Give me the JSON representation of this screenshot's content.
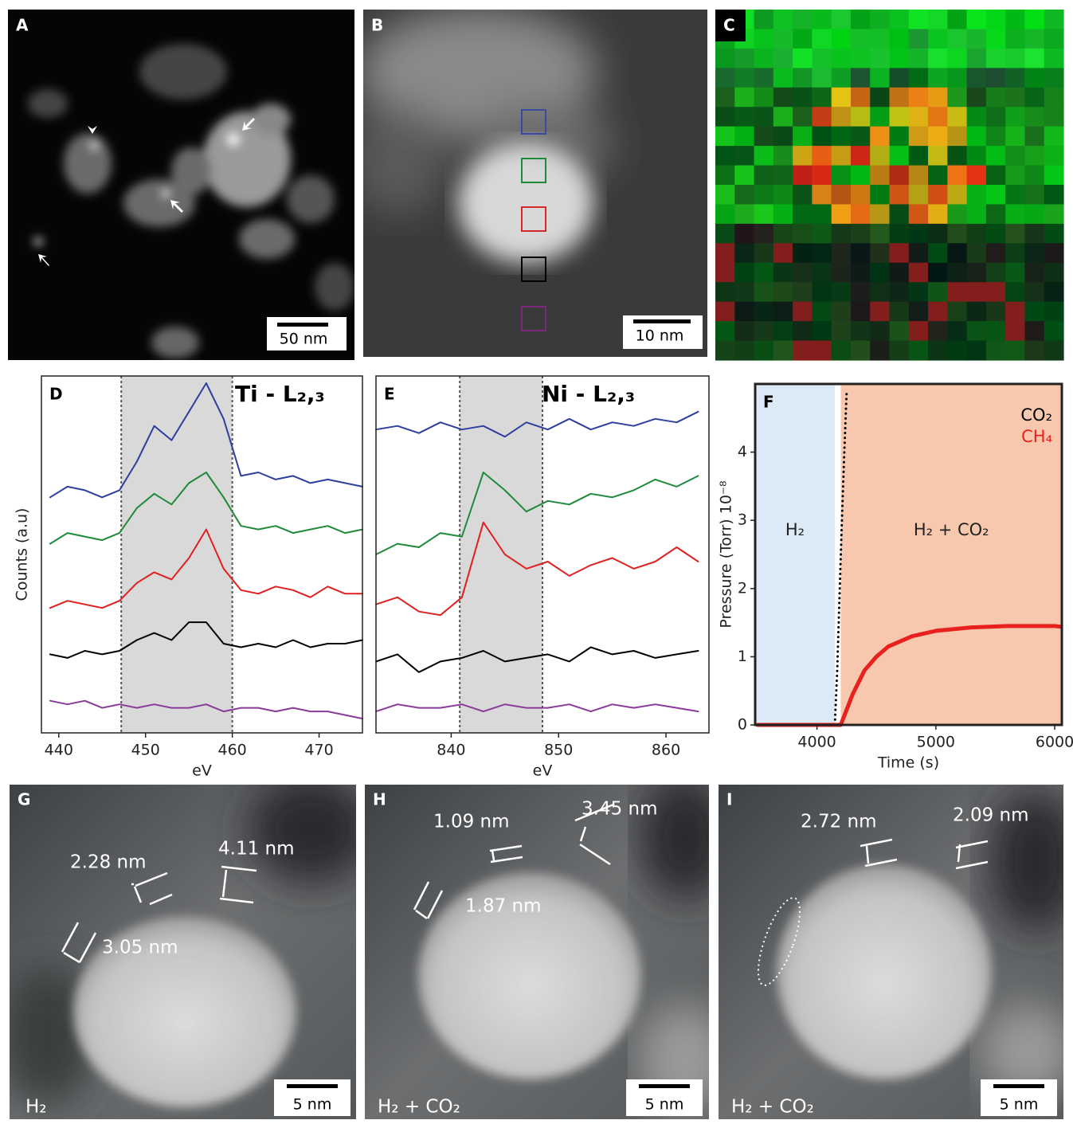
{
  "panels": [
    {
      "label": "A",
      "scale_bar": "50 nm"
    },
    {
      "label": "B",
      "scale_bar": "10 nm"
    },
    {
      "label": "C"
    },
    {
      "label": "G",
      "measurements": [
        "2.28 nm",
        "4.11 nm",
        "3.05 nm"
      ],
      "condition": "H₂",
      "scale_bar": "5 nm"
    },
    {
      "label": "H",
      "measurements": [
        "1.09 nm",
        "3.45 nm",
        "1.87 nm"
      ],
      "condition": "H₂ + CO₂",
      "scale_bar": "5 nm"
    },
    {
      "label": "I",
      "measurements": [
        "2.72 nm",
        "2.09 nm"
      ],
      "condition": "H₂ + CO₂",
      "scale_bar": "5 nm"
    }
  ],
  "chart_data": [
    {
      "type": "line",
      "panel_label": "D",
      "title": "Ti - L₂,₃",
      "x_label": "eV",
      "y_label": "Counts (a.u)",
      "xlim": [
        438,
        475
      ],
      "xticks": [
        440,
        450,
        460,
        470
      ],
      "ylim": [
        0,
        10
      ],
      "highlight": [
        447.2,
        460
      ],
      "x": [
        439,
        441,
        443,
        445,
        447,
        449,
        451,
        453,
        455,
        457,
        459,
        461,
        463,
        465,
        467,
        469,
        471,
        473,
        475
      ],
      "series": [
        {
          "color": "#2e3f9e",
          "values": [
            6.6,
            6.9,
            6.8,
            6.6,
            6.8,
            7.6,
            8.6,
            8.2,
            9.0,
            9.8,
            8.8,
            7.2,
            7.3,
            7.1,
            7.2,
            7.0,
            7.1,
            7.0,
            6.9
          ]
        },
        {
          "color": "#1e8a3a",
          "values": [
            5.3,
            5.6,
            5.5,
            5.4,
            5.6,
            6.3,
            6.7,
            6.4,
            7.0,
            7.3,
            6.6,
            5.8,
            5.7,
            5.8,
            5.6,
            5.7,
            5.8,
            5.6,
            5.7
          ]
        },
        {
          "color": "#e02020",
          "values": [
            3.5,
            3.7,
            3.6,
            3.5,
            3.7,
            4.2,
            4.5,
            4.3,
            4.9,
            5.7,
            4.6,
            4.0,
            3.9,
            4.1,
            4.0,
            3.8,
            4.1,
            3.9,
            3.9
          ]
        },
        {
          "color": "#000000",
          "values": [
            2.2,
            2.1,
            2.3,
            2.2,
            2.3,
            2.6,
            2.8,
            2.6,
            3.1,
            3.1,
            2.5,
            2.4,
            2.5,
            2.4,
            2.6,
            2.4,
            2.5,
            2.5,
            2.6
          ]
        },
        {
          "color": "#8a3a9a",
          "values": [
            0.9,
            0.8,
            0.9,
            0.7,
            0.8,
            0.7,
            0.8,
            0.7,
            0.7,
            0.8,
            0.6,
            0.7,
            0.7,
            0.6,
            0.7,
            0.6,
            0.6,
            0.5,
            0.4
          ]
        }
      ]
    },
    {
      "type": "line",
      "panel_label": "E",
      "title": "Ni - L₂,₃",
      "x_label": "eV",
      "xlim": [
        833,
        864
      ],
      "xticks": [
        840,
        850,
        860
      ],
      "ylim": [
        0,
        10
      ],
      "highlight": [
        840.8,
        848.5
      ],
      "x": [
        833,
        835,
        837,
        839,
        841,
        843,
        845,
        847,
        849,
        851,
        853,
        855,
        857,
        859,
        861,
        863
      ],
      "series": [
        {
          "color": "#2e3f9e",
          "values": [
            8.5,
            8.6,
            8.4,
            8.7,
            8.5,
            8.6,
            8.3,
            8.7,
            8.5,
            8.8,
            8.5,
            8.7,
            8.6,
            8.8,
            8.7,
            9.0
          ]
        },
        {
          "color": "#1e8a3a",
          "values": [
            5.0,
            5.3,
            5.2,
            5.6,
            5.5,
            7.3,
            6.8,
            6.2,
            6.5,
            6.4,
            6.7,
            6.6,
            6.8,
            7.1,
            6.9,
            7.2
          ]
        },
        {
          "color": "#e02020",
          "values": [
            3.6,
            3.8,
            3.4,
            3.3,
            3.8,
            5.9,
            5.0,
            4.6,
            4.8,
            4.4,
            4.7,
            4.9,
            4.6,
            4.8,
            5.2,
            4.8
          ]
        },
        {
          "color": "#000000",
          "values": [
            2.0,
            2.2,
            1.7,
            2.0,
            2.1,
            2.3,
            2.0,
            2.1,
            2.2,
            2.0,
            2.4,
            2.2,
            2.3,
            2.1,
            2.2,
            2.3
          ]
        },
        {
          "color": "#8a3a9a",
          "values": [
            0.6,
            0.8,
            0.7,
            0.7,
            0.8,
            0.6,
            0.8,
            0.7,
            0.7,
            0.8,
            0.6,
            0.8,
            0.7,
            0.8,
            0.7,
            0.6
          ]
        }
      ]
    },
    {
      "type": "line",
      "panel_label": "F",
      "x_label": "Time (s)",
      "y_label": "Pressure (Torr) 10⁻⁸",
      "xlim": [
        3480,
        6060
      ],
      "xticks": [
        4000,
        5000,
        6000
      ],
      "ylim": [
        0,
        5
      ],
      "yticks": [
        0,
        1,
        2,
        3,
        4
      ],
      "regions": [
        {
          "label": "H₂",
          "range": [
            3480,
            4150
          ],
          "color": "#dce9f6"
        },
        {
          "label": "H₂ + CO₂",
          "range": [
            4200,
            6060
          ],
          "color": "#f8c8ae"
        }
      ],
      "series": [
        {
          "name": "CO₂",
          "color": "#000000",
          "style": "dotted",
          "x": [
            3500,
            4150,
            4170,
            4190,
            4210,
            4230,
            4250
          ],
          "values": [
            0,
            0,
            0.8,
            1.9,
            3.0,
            4.0,
            4.9
          ]
        },
        {
          "name": "CH₄",
          "color": "#e8201e",
          "style": "solid",
          "x": [
            3500,
            4200,
            4300,
            4400,
            4500,
            4600,
            4800,
            5000,
            5300,
            5600,
            6000,
            6050
          ],
          "values": [
            0,
            0,
            0.45,
            0.8,
            1.0,
            1.15,
            1.3,
            1.38,
            1.43,
            1.45,
            1.45,
            1.44
          ]
        }
      ]
    }
  ]
}
